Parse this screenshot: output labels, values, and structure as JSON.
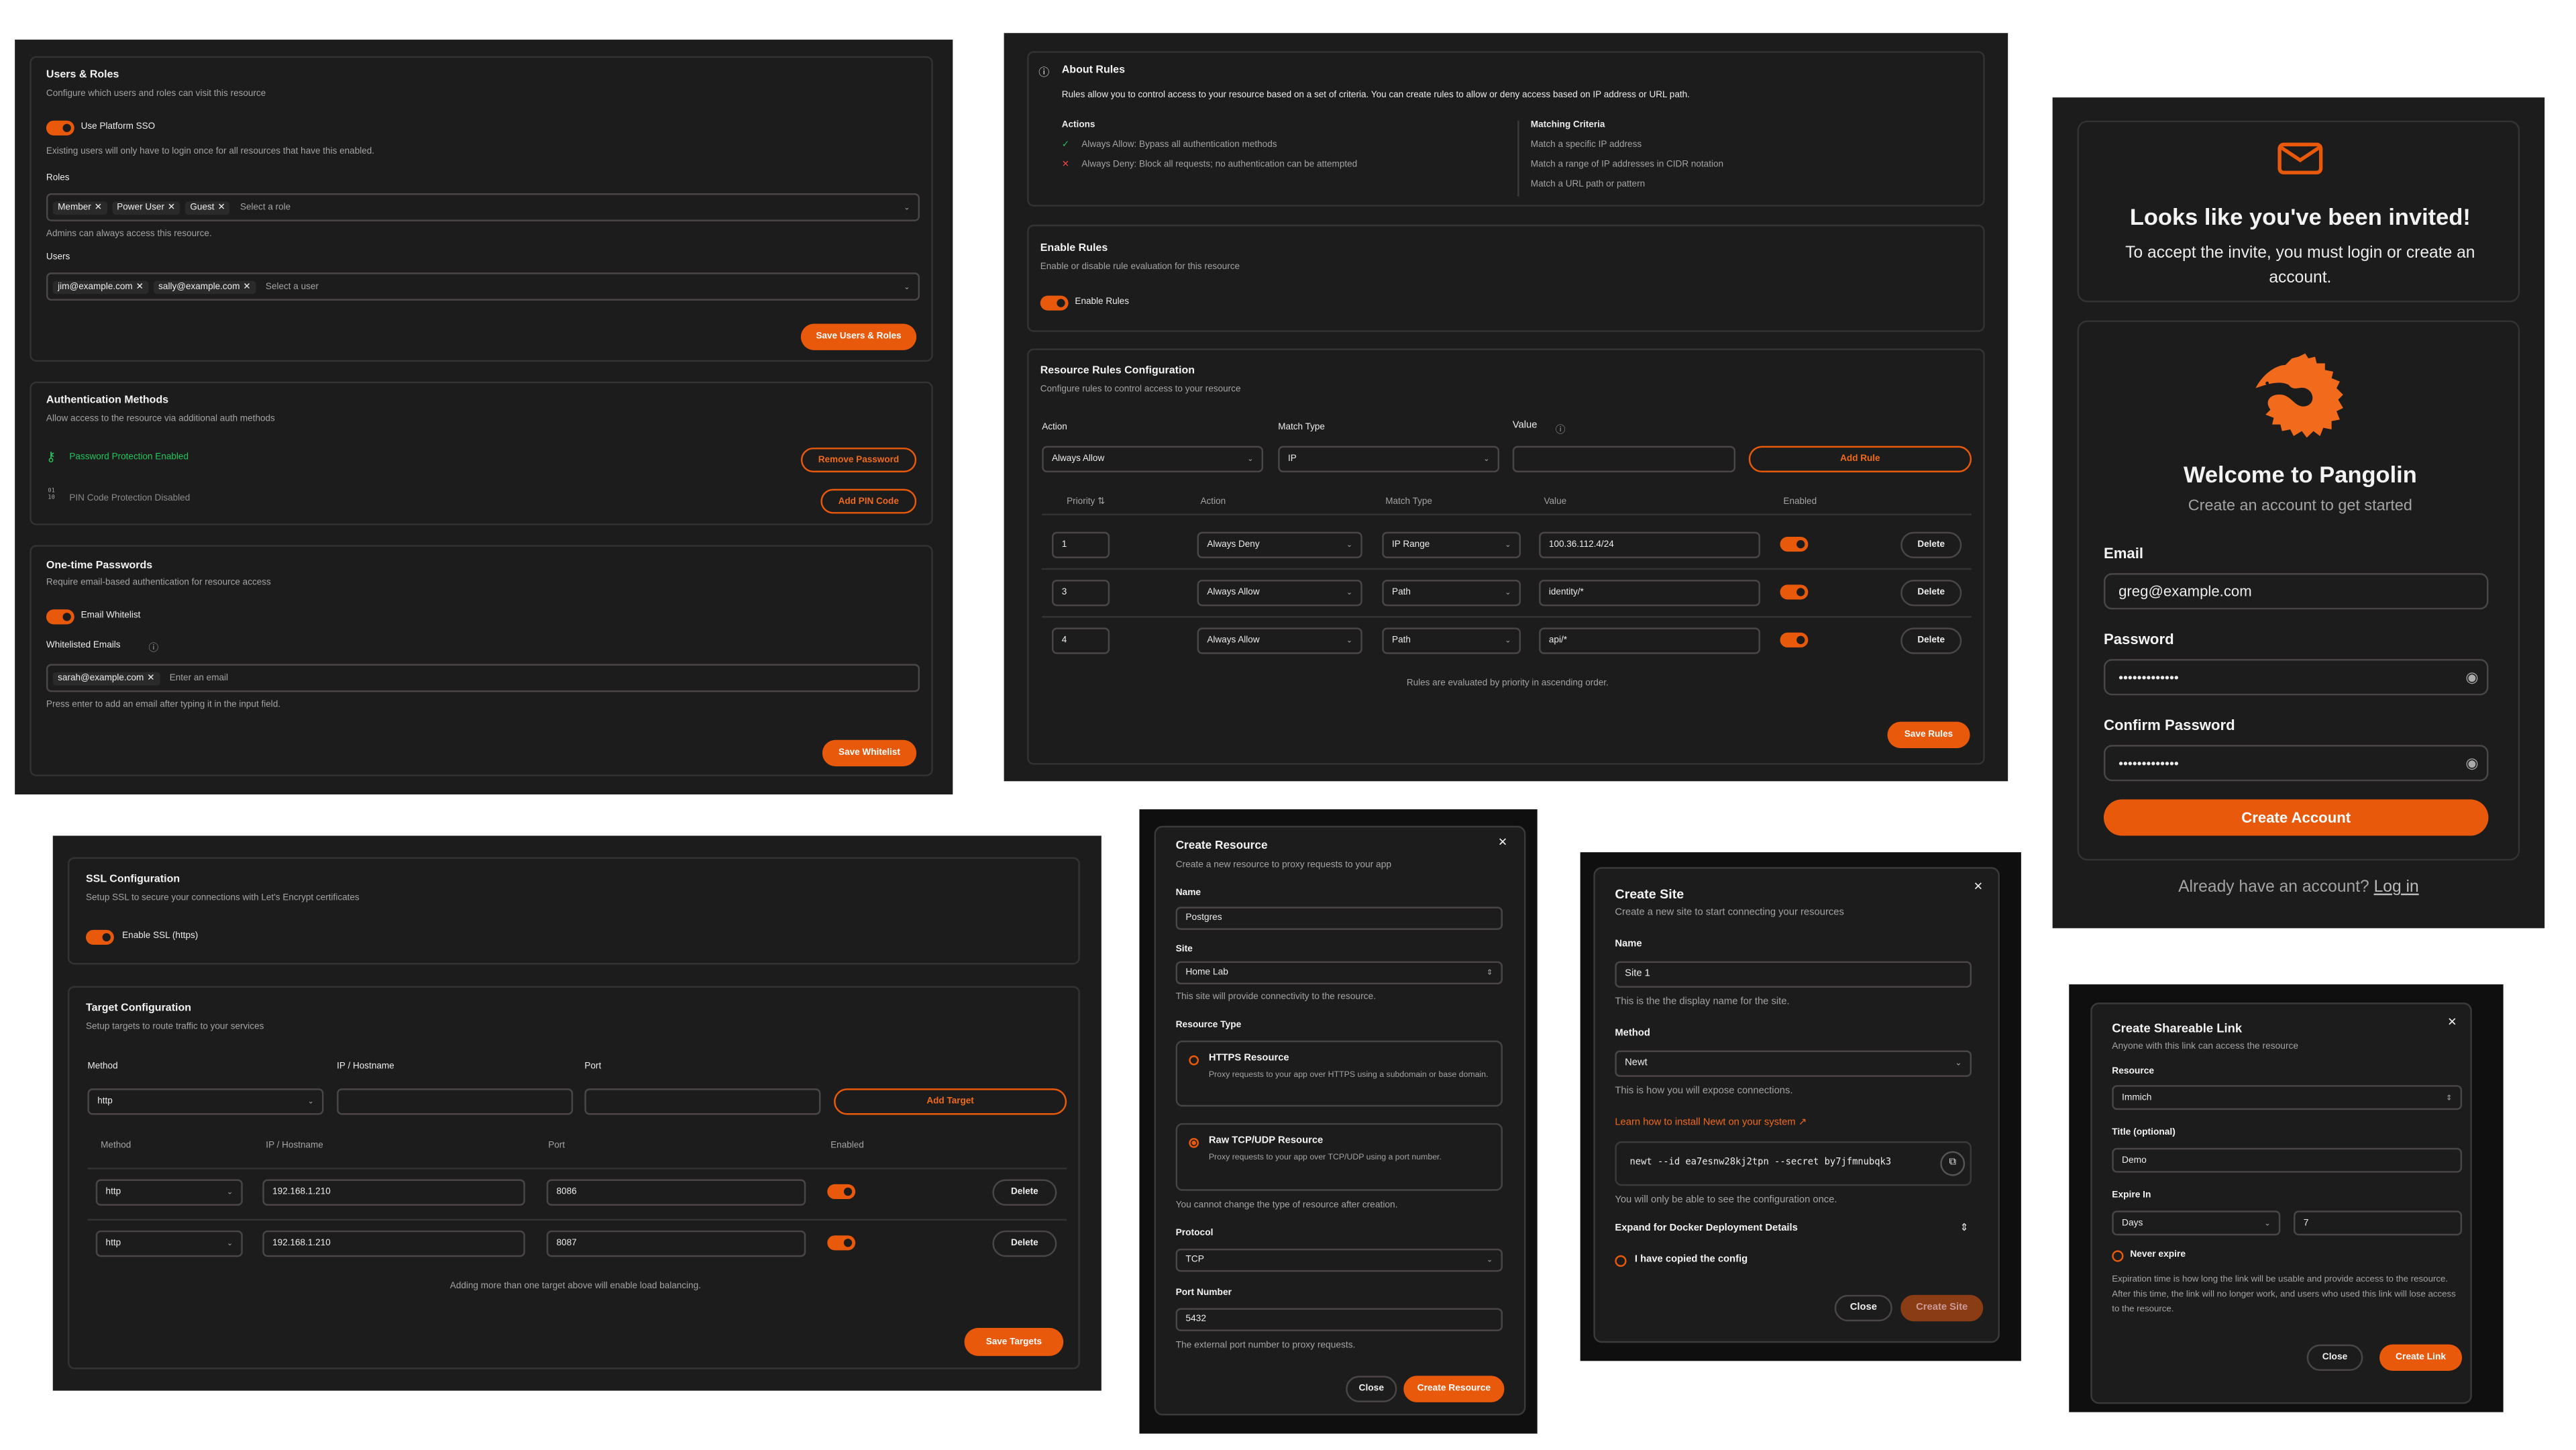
{
  "colors": {
    "accent": "#e8590c",
    "success": "#22c55e",
    "danger": "#ef4444",
    "background": "#1c1c1c"
  },
  "users_roles": {
    "title": "Users & Roles",
    "desc": "Configure which users and roles can visit this resource",
    "sso_label": "Use Platform SSO",
    "sso_enabled": true,
    "sso_help": "Existing users will only have to login once for all resources that have this enabled.",
    "roles_label": "Roles",
    "roles": [
      "Member",
      "Power User",
      "Guest"
    ],
    "roles_placeholder": "Select a role",
    "roles_help": "Admins can always access this resource.",
    "users_label": "Users",
    "users": [
      "jim@example.com",
      "sally@example.com"
    ],
    "users_placeholder": "Select a user",
    "save": "Save Users & Roles"
  },
  "auth_methods": {
    "title": "Authentication Methods",
    "desc": "Allow access to the resource via additional auth methods",
    "password_status": "Password Protection Enabled",
    "remove_password": "Remove Password",
    "pin_status": "PIN Code Protection Disabled",
    "add_pin": "Add PIN Code",
    "pin_icon": "01\n10"
  },
  "otp": {
    "title": "One-time Passwords",
    "desc": "Require email-based authentication for resource access",
    "whitelist_label": "Email Whitelist",
    "whitelist_enabled": true,
    "emails_label": "Whitelisted Emails",
    "emails": [
      "sarah@example.com"
    ],
    "emails_placeholder": "Enter an email",
    "help": "Press enter to add an email after typing it in the input field.",
    "save": "Save Whitelist"
  },
  "about_rules": {
    "title": "About Rules",
    "desc": "Rules allow you to control access to your resource based on a set of criteria. You can create rules to allow or deny access based on IP address or URL path.",
    "actions_title": "Actions",
    "actions": [
      "Always Allow: Bypass all authentication methods",
      "Always Deny: Block all requests; no authentication can be attempted"
    ],
    "criteria_title": "Matching Criteria",
    "criteria": [
      "Match a specific IP address",
      "Match a range of IP addresses in CIDR notation",
      "Match a URL path or pattern"
    ]
  },
  "enable_rules": {
    "title": "Enable Rules",
    "desc": "Enable or disable rule evaluation for this resource",
    "toggle_label": "Enable Rules",
    "enabled": true
  },
  "rules_config": {
    "title": "Resource Rules Configuration",
    "desc": "Configure rules to control access to your resource",
    "action_label": "Action",
    "action_value": "Always Allow",
    "match_label": "Match Type",
    "match_value": "IP",
    "value_label": "Value",
    "value_value": "",
    "add": "Add Rule",
    "columns": [
      "Priority",
      "Action",
      "Match Type",
      "Value",
      "Enabled"
    ],
    "rows": [
      {
        "priority": "1",
        "action": "Always Deny",
        "match": "IP Range",
        "value": "100.36.112.4/24",
        "enabled": true,
        "delete": "Delete"
      },
      {
        "priority": "3",
        "action": "Always Allow",
        "match": "Path",
        "value": "identity/*",
        "enabled": true,
        "delete": "Delete"
      },
      {
        "priority": "4",
        "action": "Always Allow",
        "match": "Path",
        "value": "api/*",
        "enabled": true,
        "delete": "Delete"
      }
    ],
    "note": "Rules are evaluated by priority in ascending order.",
    "save": "Save Rules"
  },
  "invite": {
    "title": "Looks like you've been invited!",
    "desc": "To accept the invite, you must login or create an account."
  },
  "signup": {
    "title": "Welcome to Pangolin",
    "subtitle": "Create an account to get started",
    "email_label": "Email",
    "email_value": "greg@example.com",
    "password_label": "Password",
    "password_value": "•••••••••••••",
    "confirm_label": "Confirm Password",
    "confirm_value": "•••••••••••••",
    "submit": "Create Account",
    "footer": "Already have an account?",
    "login": "Log in"
  },
  "ssl": {
    "title": "SSL Configuration",
    "desc": "Setup SSL to secure your connections with Let's Encrypt certificates",
    "toggle_label": "Enable SSL (https)",
    "enabled": true
  },
  "targets": {
    "title": "Target Configuration",
    "desc": "Setup targets to route traffic to your services",
    "method_label": "Method",
    "method_value": "http",
    "ip_label": "IP / Hostname",
    "ip_value": "",
    "port_label": "Port",
    "port_value": "",
    "add": "Add Target",
    "columns": [
      "Method",
      "IP / Hostname",
      "Port",
      "Enabled"
    ],
    "rows": [
      {
        "method": "http",
        "ip": "192.168.1.210",
        "port": "8086",
        "enabled": true,
        "delete": "Delete"
      },
      {
        "method": "http",
        "ip": "192.168.1.210",
        "port": "8087",
        "enabled": true,
        "delete": "Delete"
      }
    ],
    "note": "Adding more than one target above will enable load balancing.",
    "save": "Save Targets"
  },
  "create_resource": {
    "title": "Create Resource",
    "desc": "Create a new resource to proxy requests to your app",
    "name_label": "Name",
    "name_value": "Postgres",
    "site_label": "Site",
    "site_value": "Home Lab",
    "site_help": "This site will provide connectivity to the resource.",
    "type_label": "Resource Type",
    "types": [
      {
        "title": "HTTPS Resource",
        "desc": "Proxy requests to your app over HTTPS using a subdomain or base domain.",
        "selected": false
      },
      {
        "title": "Raw TCP/UDP Resource",
        "desc": "Proxy requests to your app over TCP/UDP using a port number.",
        "selected": true
      }
    ],
    "type_help": "You cannot change the type of resource after creation.",
    "protocol_label": "Protocol",
    "protocol_value": "TCP",
    "port_label": "Port Number",
    "port_value": "5432",
    "port_help": "The external port number to proxy requests.",
    "close": "Close",
    "submit": "Create Resource"
  },
  "create_site": {
    "title": "Create Site",
    "desc": "Create a new site to start connecting your resources",
    "name_label": "Name",
    "name_value": "Site 1",
    "name_help": "This is the the display name for the site.",
    "method_label": "Method",
    "method_value": "Newt",
    "method_help": "This is how you will expose connections.",
    "learn_link": "Learn how to install Newt on your system",
    "command": "newt --id ea7esnw28kj2tpn --secret by7jfmnubqk3",
    "once_help": "You will only be able to see the configuration once.",
    "expand": "Expand for Docker Deployment Details",
    "copied_label": "I have copied the config",
    "close": "Close",
    "submit": "Create Site"
  },
  "share_link": {
    "title": "Create Shareable Link",
    "desc": "Anyone with this link can access the resource",
    "resource_label": "Resource",
    "resource_value": "Immich",
    "title_label": "Title (optional)",
    "title_value": "Demo",
    "expire_label": "Expire In",
    "unit_value": "Days",
    "amount_value": "7",
    "never_label": "Never expire",
    "help": "Expiration time is how long the link will be usable and provide access to the resource. After this time, the link will no longer work, and users who used this link will lose access to the resource.",
    "close": "Close",
    "submit": "Create Link"
  }
}
